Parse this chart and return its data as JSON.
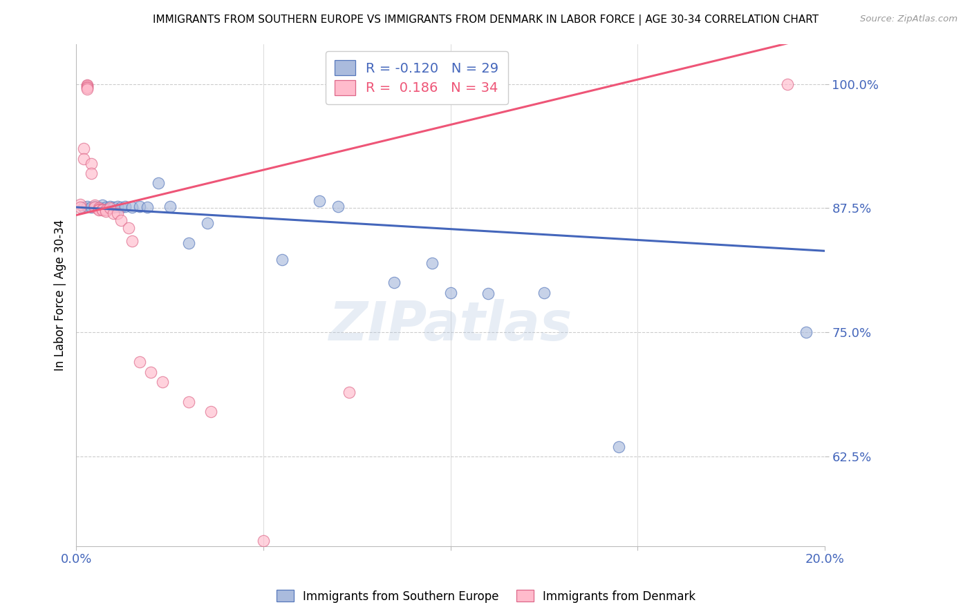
{
  "title": "IMMIGRANTS FROM SOUTHERN EUROPE VS IMMIGRANTS FROM DENMARK IN LABOR FORCE | AGE 30-34 CORRELATION CHART",
  "source": "Source: ZipAtlas.com",
  "ylabel": "In Labor Force | Age 30-34",
  "blue_label": "Immigrants from Southern Europe",
  "pink_label": "Immigrants from Denmark",
  "xlim": [
    0.0,
    0.2
  ],
  "ylim": [
    0.535,
    1.04
  ],
  "yticks": [
    0.625,
    0.75,
    0.875,
    1.0
  ],
  "ytick_labels": [
    "62.5%",
    "75.0%",
    "87.5%",
    "100.0%"
  ],
  "xticks": [
    0.0,
    0.05,
    0.1,
    0.15,
    0.2
  ],
  "xtick_labels": [
    "0.0%",
    "",
    "",
    "",
    "20.0%"
  ],
  "blue_fill": "#AABBDD",
  "blue_edge": "#5577BB",
  "pink_fill": "#FFBBCC",
  "pink_edge": "#DD6688",
  "trend_blue": "#4466BB",
  "trend_pink": "#EE5577",
  "R_blue": -0.12,
  "N_blue": 29,
  "R_pink": 0.186,
  "N_pink": 34,
  "blue_points_x": [
    0.002,
    0.003,
    0.004,
    0.005,
    0.006,
    0.007,
    0.008,
    0.009,
    0.01,
    0.011,
    0.012,
    0.013,
    0.015,
    0.017,
    0.019,
    0.022,
    0.025,
    0.03,
    0.035,
    0.055,
    0.065,
    0.07,
    0.085,
    0.095,
    0.1,
    0.11,
    0.125,
    0.145,
    0.195
  ],
  "blue_points_y": [
    0.876,
    0.877,
    0.876,
    0.877,
    0.876,
    0.878,
    0.876,
    0.877,
    0.876,
    0.877,
    0.876,
    0.877,
    0.876,
    0.877,
    0.876,
    0.9,
    0.877,
    0.84,
    0.86,
    0.823,
    0.882,
    0.877,
    0.8,
    0.82,
    0.79,
    0.789,
    0.79,
    0.635,
    0.75
  ],
  "pink_points_x": [
    0.001,
    0.001,
    0.002,
    0.002,
    0.003,
    0.003,
    0.003,
    0.003,
    0.003,
    0.004,
    0.004,
    0.005,
    0.005,
    0.006,
    0.006,
    0.006,
    0.007,
    0.007,
    0.008,
    0.008,
    0.009,
    0.01,
    0.011,
    0.012,
    0.014,
    0.015,
    0.017,
    0.02,
    0.023,
    0.03,
    0.036,
    0.05,
    0.073,
    0.19
  ],
  "pink_points_y": [
    0.879,
    0.876,
    0.935,
    0.925,
    0.999,
    0.998,
    0.997,
    0.996,
    0.995,
    0.92,
    0.91,
    0.878,
    0.876,
    0.875,
    0.874,
    0.873,
    0.874,
    0.873,
    0.873,
    0.872,
    0.875,
    0.87,
    0.87,
    0.863,
    0.855,
    0.842,
    0.72,
    0.71,
    0.7,
    0.68,
    0.67,
    0.54,
    0.69,
    1.0
  ],
  "watermark": "ZIPatlas",
  "tick_color": "#4466BB",
  "grid_color": "#CCCCCC"
}
